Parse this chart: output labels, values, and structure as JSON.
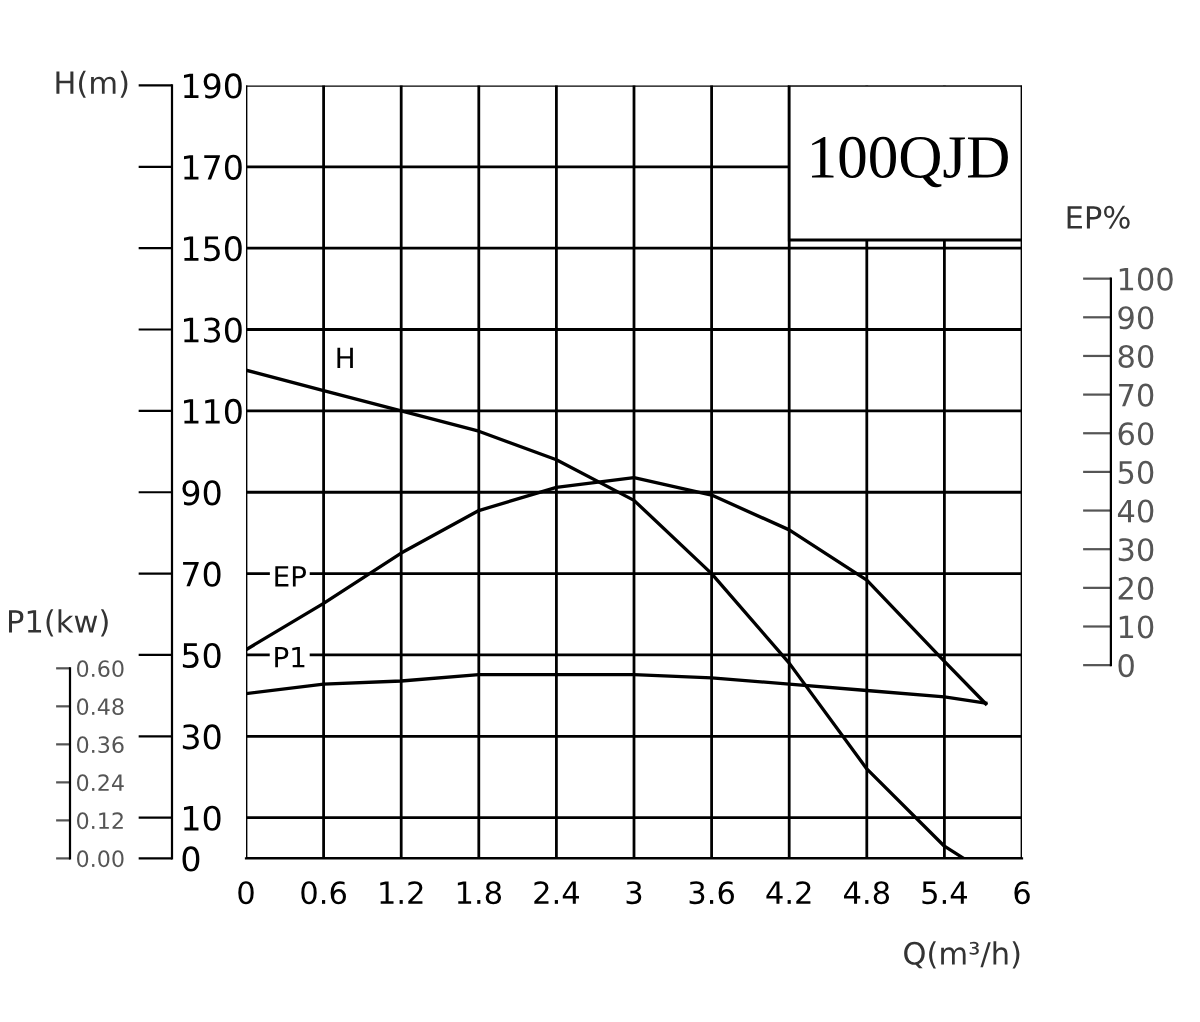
{
  "chart_data": {
    "type": "line",
    "title": "100QJD",
    "xlabel": "Q(m³/h)",
    "ylabel": "H(m)",
    "y2label": "EP%",
    "y3label": "P1(kw)",
    "x": [
      0,
      0.6,
      1.2,
      1.8,
      2.4,
      3,
      3.6,
      4.2,
      4.8,
      5.4,
      5.72
    ],
    "series": [
      {
        "name": "H",
        "color": "#000000",
        "x": [
          0,
          0.6,
          1.2,
          1.8,
          2.4,
          3,
          3.6,
          4.2,
          4.8,
          5.4,
          5.55
        ],
        "values": [
          120,
          115,
          110,
          105,
          98,
          88,
          70,
          48,
          22,
          3,
          0
        ]
      },
      {
        "name": "EP",
        "color": "#000000",
        "axis": "y2",
        "values": [
          4,
          16,
          29,
          40,
          46,
          48.5,
          44,
          35,
          22,
          1,
          -10
        ]
      },
      {
        "name": "P1",
        "color": "#000000",
        "axis": "y3",
        "values": [
          0.52,
          0.55,
          0.56,
          0.58,
          0.58,
          0.58,
          0.57,
          0.55,
          0.53,
          0.51,
          0.49
        ]
      }
    ],
    "xlim": [
      0,
      6
    ],
    "xticks": [
      0,
      0.6,
      1.2,
      1.8,
      2.4,
      3,
      3.6,
      4.2,
      4.8,
      5.4,
      6
    ],
    "ylim": [
      0,
      190
    ],
    "yticks": [
      0,
      10,
      30,
      50,
      70,
      90,
      110,
      130,
      150,
      170,
      190
    ],
    "y2lim": [
      -50,
      150
    ],
    "y2ticks": [
      0,
      10,
      20,
      30,
      40,
      50,
      60,
      70,
      80,
      90,
      100
    ],
    "y3lim": [
      0,
      2.44
    ],
    "y3ticks": [
      {
        "value": 0,
        "label": "0.00"
      },
      {
        "value": 0.12,
        "label": "0.12"
      },
      {
        "value": 0.24,
        "label": "0.24"
      },
      {
        "value": 0.36,
        "label": "0.36"
      },
      {
        "value": 0.48,
        "label": "0.48"
      },
      {
        "value": 0.6,
        "label": "0.60"
      }
    ],
    "grid": true,
    "legend": false,
    "marker": "none",
    "line_style": "solid"
  }
}
